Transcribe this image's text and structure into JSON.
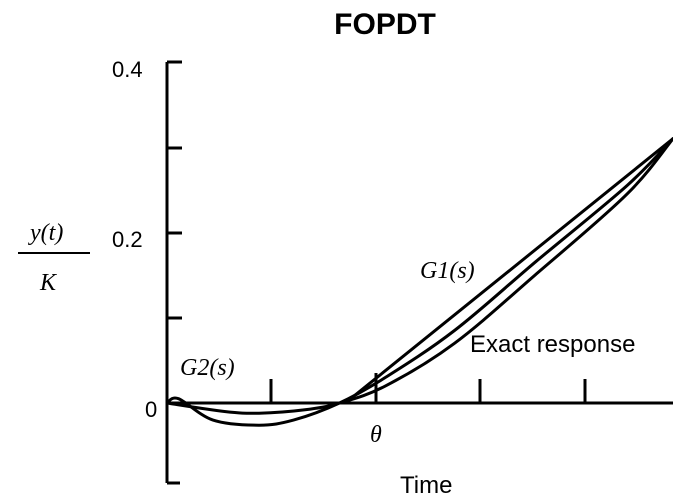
{
  "title": "FOPDT",
  "chart_data": {
    "type": "line",
    "title": "FOPDT",
    "xlabel": "Time",
    "ylabel_numerator": "y(t)",
    "ylabel_denominator": "K",
    "y_ticks": [
      "0",
      "0.2",
      "0.4"
    ],
    "ylim": [
      -0.08,
      0.4
    ],
    "series": [
      {
        "name": "G1(s)",
        "x": [
          0,
          1.55,
          4.4
        ],
        "y": [
          0,
          0,
          0.31
        ]
      },
      {
        "name": "Exact response",
        "x": [
          0,
          0.5,
          0.8,
          1.2,
          1.5,
          1.9,
          2.5,
          3.2,
          4.0,
          4.4
        ],
        "y": [
          0,
          -0.01,
          -0.012,
          -0.008,
          0.0,
          0.02,
          0.07,
          0.15,
          0.245,
          0.31
        ]
      },
      {
        "name": "G2(s)",
        "x": [
          0,
          0.1,
          0.4,
          0.8,
          1.1,
          1.5,
          1.9,
          2.5,
          3.2,
          4.0,
          4.4
        ],
        "y": [
          0,
          0.005,
          -0.02,
          -0.026,
          -0.02,
          0.0,
          0.03,
          0.085,
          0.165,
          0.255,
          0.31
        ]
      }
    ],
    "annotations": [
      "G1(s)",
      "G2(s)",
      "Exact response",
      "θ"
    ]
  }
}
